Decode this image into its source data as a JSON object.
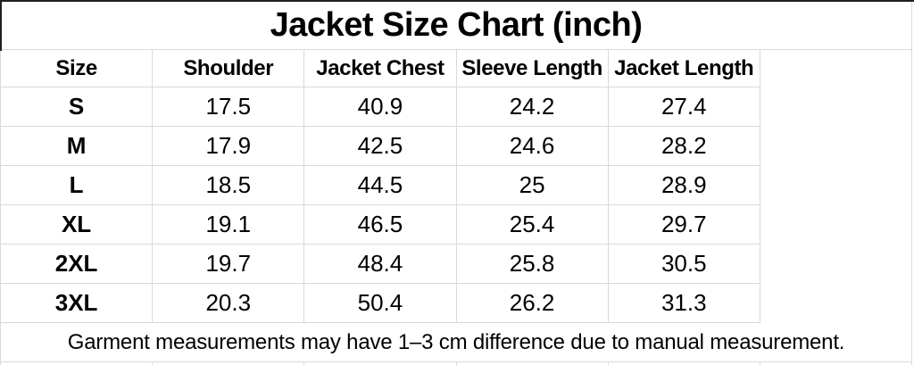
{
  "chart_data": {
    "type": "table",
    "title": "Jacket Size Chart (inch)",
    "unit": "inch",
    "columns": [
      "Size",
      "Shoulder",
      "Jacket Chest",
      "Sleeve Length",
      "Jacket Length"
    ],
    "rows": [
      [
        "S",
        "17.5",
        "40.9",
        "24.2",
        "27.4"
      ],
      [
        "M",
        "17.9",
        "42.5",
        "24.6",
        "28.2"
      ],
      [
        "L",
        "18.5",
        "44.5",
        "25",
        "28.9"
      ],
      [
        "XL",
        "19.1",
        "46.5",
        "25.4",
        "29.7"
      ],
      [
        "2XL",
        "19.7",
        "48.4",
        "25.8",
        "30.5"
      ],
      [
        "3XL",
        "20.3",
        "50.4",
        "26.2",
        "31.3"
      ]
    ],
    "note": "Garment measurements may have 1–3 cm difference due to manual measurement.",
    "layout_hints": {
      "columns_shown": 6,
      "empty_trailing_column": true,
      "grid_on": true
    }
  },
  "colors": {
    "background": "#ffffff",
    "text": "#000000",
    "grid_line": "#d9d9d9",
    "outer_border": "#1f1f1f"
  }
}
